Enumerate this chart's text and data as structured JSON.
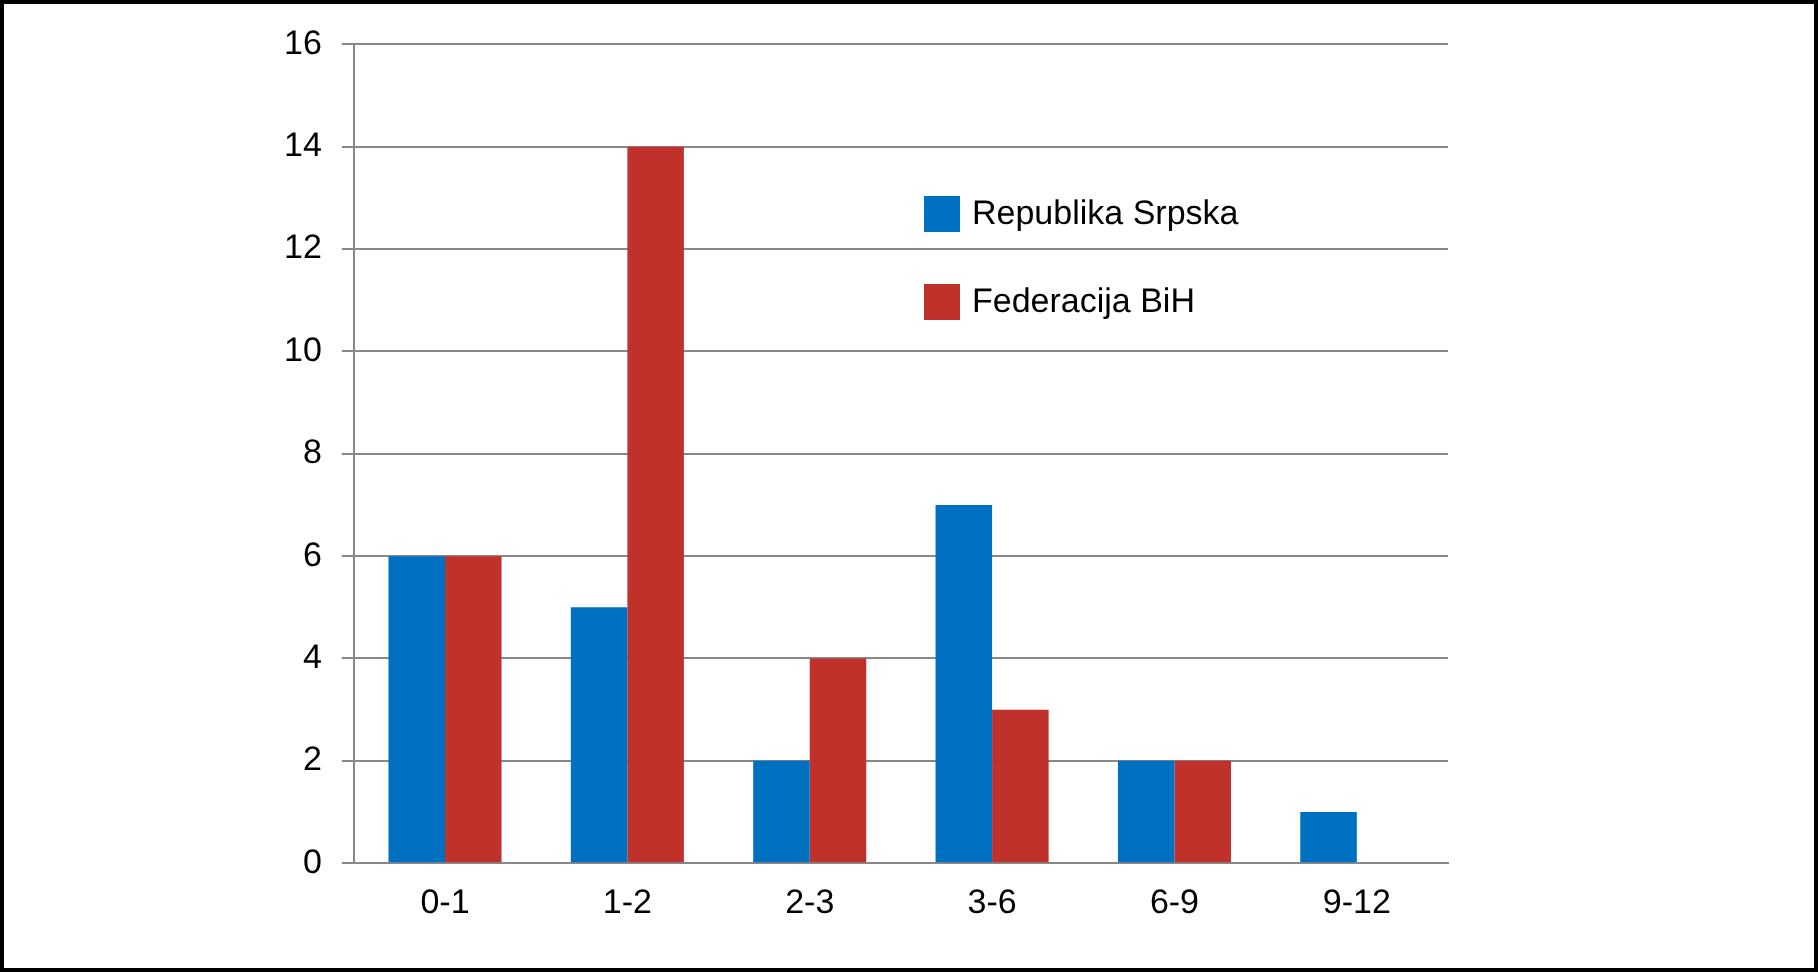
{
  "chart_data": {
    "type": "bar",
    "categories": [
      "0-1",
      "1-2",
      "2-3",
      "3-6",
      "6-9",
      "9-12"
    ],
    "series": [
      {
        "name": "Republika Srpska",
        "color": "#0070c0",
        "values": [
          6,
          5,
          2,
          7,
          2,
          1
        ]
      },
      {
        "name": "Federacija BiH",
        "color": "#c0312b",
        "values": [
          6,
          14,
          4,
          3,
          2,
          0
        ]
      }
    ],
    "ylim": [
      0,
      16
    ],
    "yticks": [
      0,
      2,
      4,
      6,
      8,
      10,
      12,
      14,
      16
    ],
    "grid": "y",
    "legend": "top right"
  }
}
